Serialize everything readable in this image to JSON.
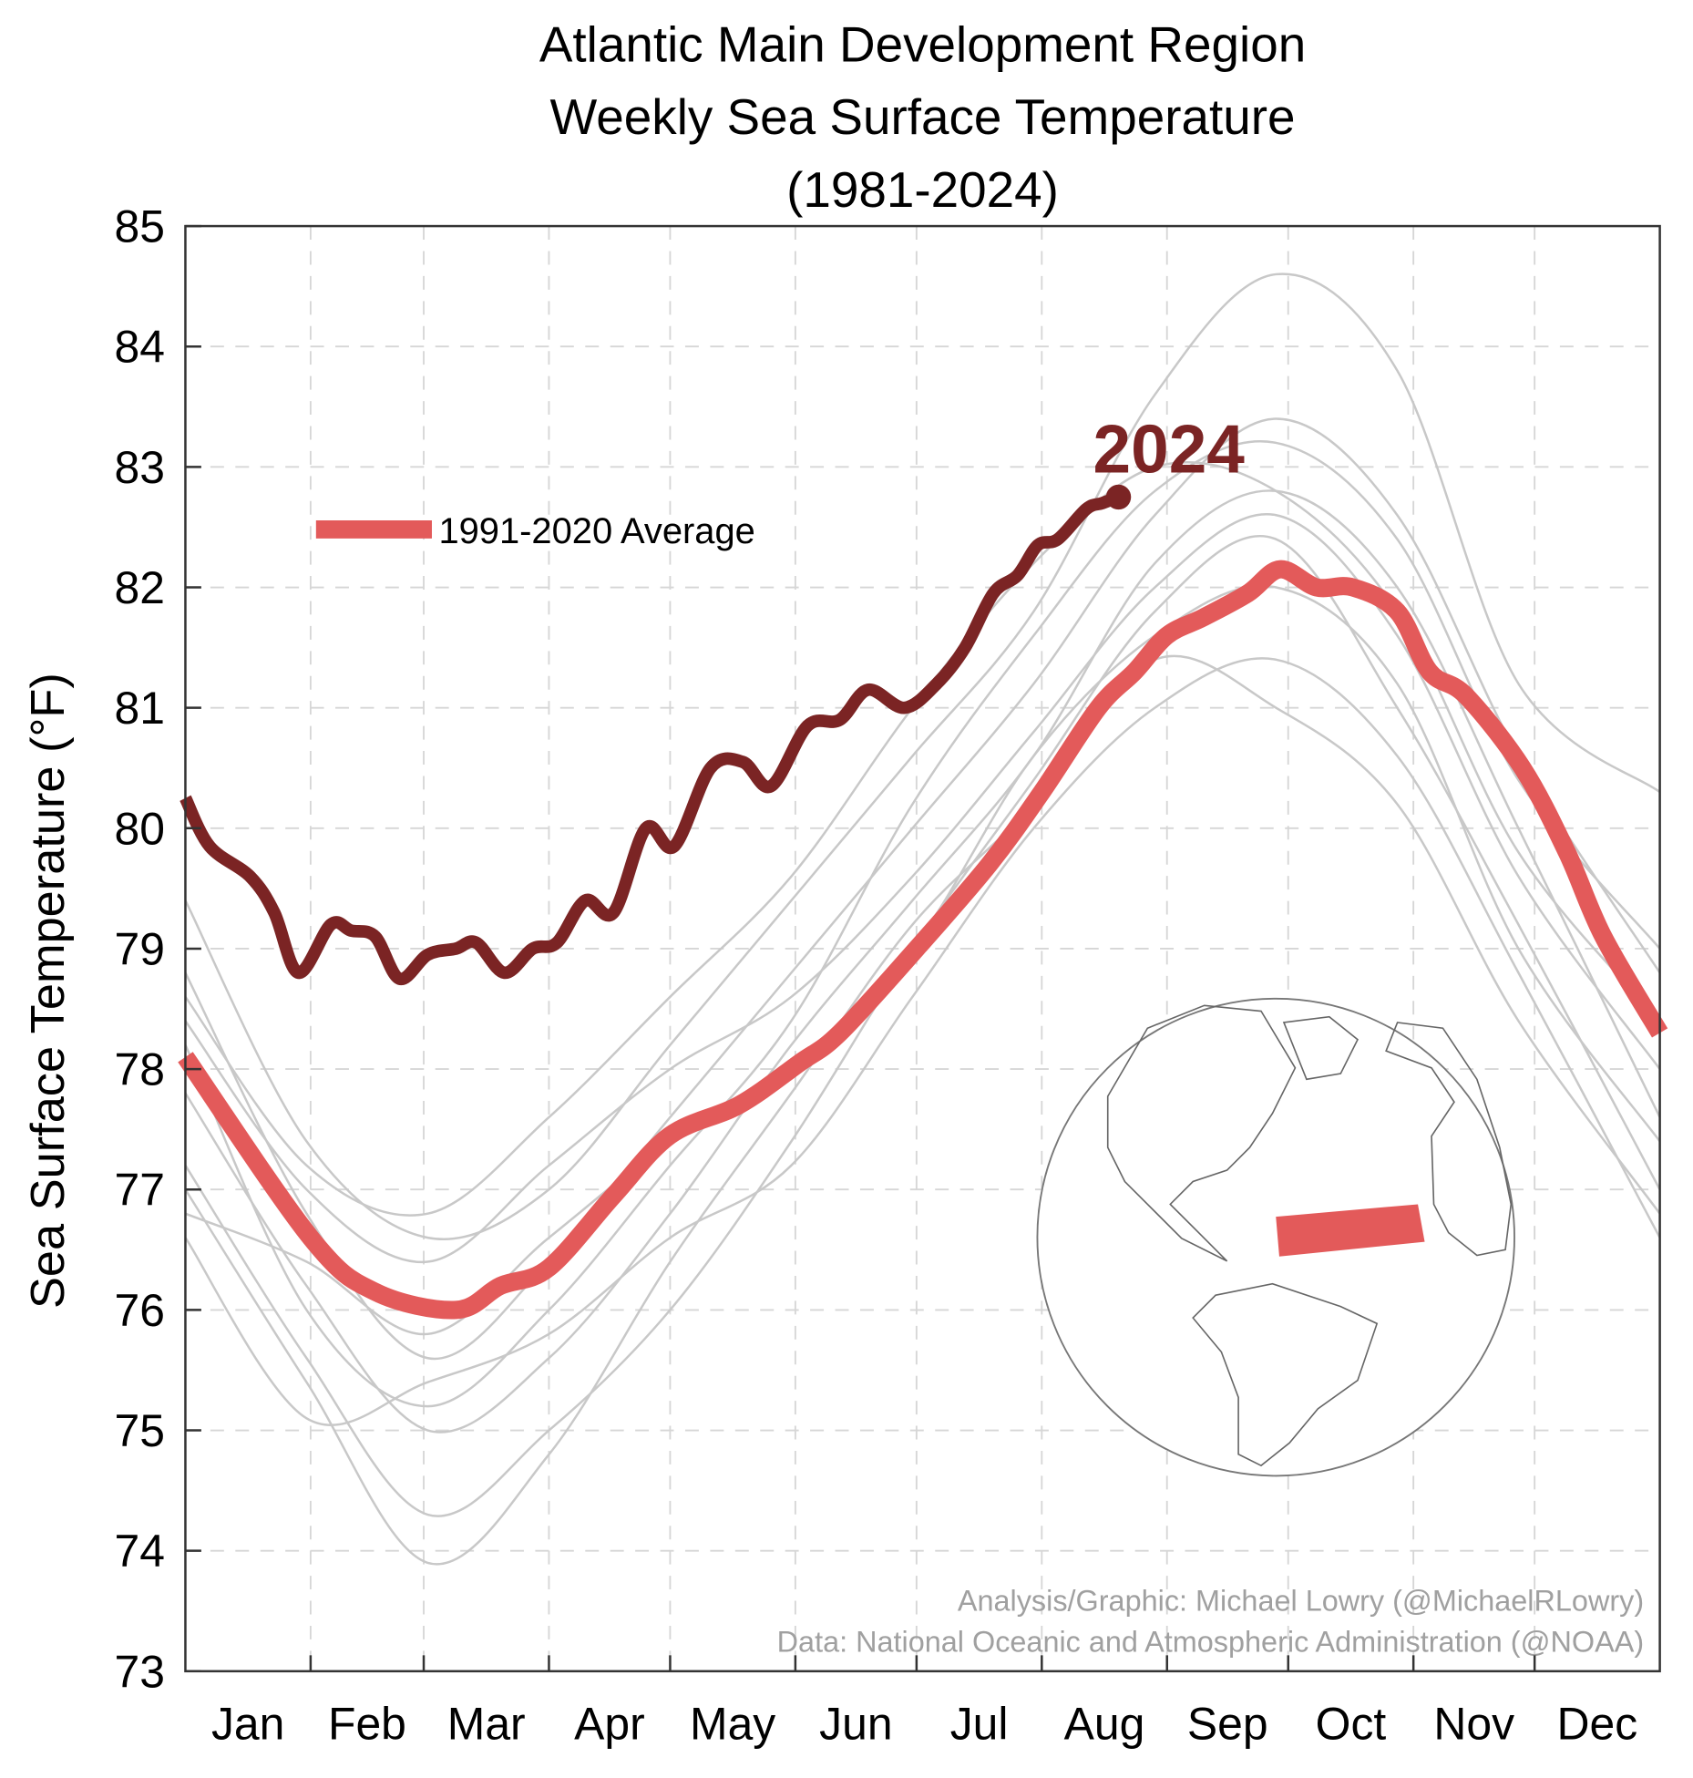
{
  "chart_data": {
    "type": "line",
    "title": [
      "Atlantic Main Development Region",
      "Weekly Sea Surface Temperature",
      "(1981-2024)"
    ],
    "xlabel": "",
    "ylabel": "Sea Surface Temperature (°F)",
    "ylim": [
      73,
      85
    ],
    "yticks": [
      "73",
      "74",
      "75",
      "76",
      "77",
      "78",
      "79",
      "80",
      "81",
      "82",
      "83",
      "84",
      "85"
    ],
    "xlim_day_of_year": [
      0,
      365
    ],
    "month_ticks_day": [
      31,
      59,
      90,
      120,
      151,
      181,
      212,
      243,
      273,
      304,
      334
    ],
    "month_labels": [
      "Jan",
      "Feb",
      "Mar",
      "Apr",
      "May",
      "Jun",
      "Jul",
      "Aug",
      "Sep",
      "Oct",
      "Nov",
      "Dec"
    ],
    "grid": true,
    "legend": {
      "label": "1991-2020 Average",
      "placement": "top-left"
    },
    "annotation_2024": "2024",
    "credits": [
      "Analysis/Graphic: Michael Lowry (@MichaelRLowry)",
      "Data: National Oceanic and Atmospheric Administration (@NOAA)"
    ],
    "colors": {
      "average": "#e35a5a",
      "current": "#7b2424",
      "other_years": "#c8c8c8"
    },
    "series": [
      {
        "name": "1991-2020 Average",
        "x": [
          0,
          31,
          47,
          67,
          78,
          90,
          106,
          120,
          137,
          152,
          162,
          181,
          199,
          212,
          226,
          235,
          243,
          252,
          263,
          271,
          280,
          289,
          300,
          308,
          317,
          331,
          342,
          351,
          365
        ],
        "y": [
          78.1,
          76.6,
          76.15,
          76.0,
          76.2,
          76.35,
          76.95,
          77.45,
          77.7,
          78.05,
          78.3,
          79.0,
          79.7,
          80.3,
          81.0,
          81.3,
          81.6,
          81.75,
          81.95,
          82.15,
          82.0,
          82.0,
          81.8,
          81.3,
          81.1,
          80.5,
          79.8,
          79.1,
          78.3
        ]
      },
      {
        "name": "2024",
        "x": [
          0,
          6,
          16,
          22,
          28,
          36,
          41,
          47,
          53,
          60,
          67,
          72,
          79,
          86,
          92,
          99,
          106,
          114,
          121,
          130,
          138,
          145,
          154,
          162,
          169,
          178,
          186,
          193,
          200,
          206,
          211,
          216,
          223,
          227,
          231
        ],
        "y": [
          80.25,
          79.85,
          79.6,
          79.3,
          78.8,
          79.2,
          79.15,
          79.1,
          78.75,
          78.95,
          79.0,
          79.05,
          78.8,
          79.0,
          79.05,
          79.4,
          79.3,
          80.0,
          79.85,
          80.5,
          80.55,
          80.35,
          80.85,
          80.9,
          81.15,
          81.0,
          81.2,
          81.5,
          81.95,
          82.1,
          82.35,
          82.4,
          82.65,
          82.7,
          82.75
        ]
      }
    ],
    "other_years_x": [
      0,
      30,
      60,
      90,
      120,
      150,
      180,
      210,
      240,
      270,
      300,
      330,
      365
    ],
    "other_years": [
      [
        79.4,
        77.4,
        76.6,
        77.0,
        78.2,
        79.4,
        80.6,
        81.8,
        83.6,
        84.6,
        83.8,
        81.2,
        80.3
      ],
      [
        77.2,
        75.6,
        74.3,
        75.0,
        76.0,
        77.4,
        79.0,
        80.4,
        81.8,
        82.4,
        81.0,
        79.2,
        77.0
      ],
      [
        78.8,
        76.8,
        75.6,
        76.4,
        77.6,
        78.8,
        80.0,
        81.2,
        82.6,
        83.4,
        82.6,
        80.6,
        78.8
      ],
      [
        76.6,
        75.1,
        75.4,
        75.8,
        76.6,
        77.2,
        78.6,
        80.0,
        81.0,
        81.4,
        80.6,
        78.8,
        76.6
      ],
      [
        77.8,
        76.2,
        75.0,
        75.6,
        76.8,
        78.2,
        79.4,
        80.6,
        82.2,
        82.8,
        82.0,
        80.0,
        77.6
      ],
      [
        78.4,
        77.0,
        76.4,
        77.2,
        78.0,
        78.6,
        79.6,
        80.8,
        82.0,
        82.6,
        81.6,
        79.6,
        78.0
      ],
      [
        77.0,
        75.4,
        73.9,
        74.8,
        76.4,
        77.8,
        79.2,
        80.2,
        81.4,
        81.0,
        80.2,
        78.4,
        76.8
      ],
      [
        78.2,
        76.0,
        75.2,
        76.0,
        77.2,
        78.4,
        80.2,
        81.6,
        82.8,
        83.2,
        82.4,
        80.4,
        79.0
      ],
      [
        76.8,
        76.4,
        75.8,
        76.6,
        77.4,
        78.0,
        79.0,
        80.6,
        81.6,
        82.0,
        81.2,
        79.0,
        77.4
      ],
      [
        78.6,
        77.2,
        76.8,
        77.6,
        78.6,
        79.6,
        81.0,
        82.2,
        83.0,
        82.8,
        81.8,
        79.8,
        78.4
      ]
    ]
  }
}
